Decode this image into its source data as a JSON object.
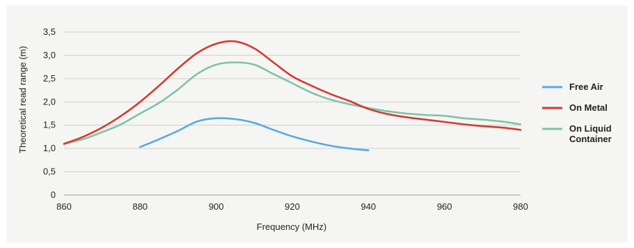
{
  "chart_data": {
    "type": "line",
    "title": "",
    "xlabel": "Frequency (MHz)",
    "ylabel": "Theoretical read range (m)",
    "xlim": [
      860,
      980
    ],
    "ylim": [
      0,
      3.5
    ],
    "x_ticks": [
      860,
      880,
      900,
      920,
      940,
      960,
      980
    ],
    "x_tick_labels": [
      "860",
      "880",
      "900",
      "920",
      "940",
      "960",
      "980"
    ],
    "y_ticks": [
      0,
      0.5,
      1.0,
      1.5,
      2.0,
      2.5,
      3.0,
      3.5
    ],
    "y_tick_labels": [
      "0",
      "0,5",
      "1,0",
      "1,5",
      "2,0",
      "2,5",
      "3,0",
      "3,5"
    ],
    "grid": "horizontal",
    "legend_position": "right",
    "series": [
      {
        "name": "Free Air",
        "color": "#5aa9e2",
        "x": [
          880,
          885,
          890,
          895,
          900,
          905,
          910,
          915,
          920,
          925,
          930,
          935,
          940
        ],
        "y": [
          1.03,
          1.2,
          1.38,
          1.58,
          1.65,
          1.63,
          1.55,
          1.4,
          1.26,
          1.15,
          1.06,
          1.0,
          0.96
        ]
      },
      {
        "name": "On Metal",
        "color": "#d63a30",
        "x": [
          860,
          865,
          870,
          875,
          880,
          885,
          890,
          895,
          900,
          905,
          910,
          915,
          920,
          925,
          930,
          935,
          940,
          945,
          950,
          955,
          960,
          965,
          970,
          975,
          980
        ],
        "y": [
          1.1,
          1.25,
          1.45,
          1.7,
          2.0,
          2.35,
          2.72,
          3.05,
          3.25,
          3.3,
          3.15,
          2.85,
          2.55,
          2.35,
          2.17,
          2.02,
          1.85,
          1.74,
          1.67,
          1.62,
          1.57,
          1.52,
          1.48,
          1.45,
          1.4
        ]
      },
      {
        "name": "On Liquid Container",
        "name_lines": [
          "On Liquid",
          "Container"
        ],
        "color": "#7fc3a6",
        "x": [
          860,
          865,
          870,
          875,
          880,
          885,
          890,
          895,
          900,
          905,
          910,
          915,
          920,
          925,
          930,
          935,
          940,
          945,
          950,
          955,
          960,
          965,
          970,
          975,
          980
        ],
        "y": [
          1.1,
          1.2,
          1.35,
          1.52,
          1.75,
          1.98,
          2.27,
          2.6,
          2.8,
          2.85,
          2.8,
          2.6,
          2.4,
          2.2,
          2.05,
          1.95,
          1.87,
          1.8,
          1.75,
          1.72,
          1.7,
          1.65,
          1.62,
          1.58,
          1.52
        ]
      }
    ]
  }
}
